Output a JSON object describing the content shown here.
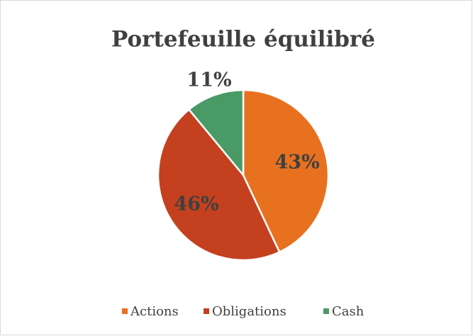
{
  "chart_data": {
    "type": "pie",
    "title": "Portefeuille équilibré",
    "categories": [
      "Actions",
      "Obligations",
      "Cash"
    ],
    "values": [
      43,
      46,
      11
    ],
    "value_labels": [
      "43%",
      "46%",
      "11%"
    ],
    "colors": [
      "#e8711f",
      "#c5401f",
      "#4a9a66"
    ],
    "legend": "bottom"
  }
}
